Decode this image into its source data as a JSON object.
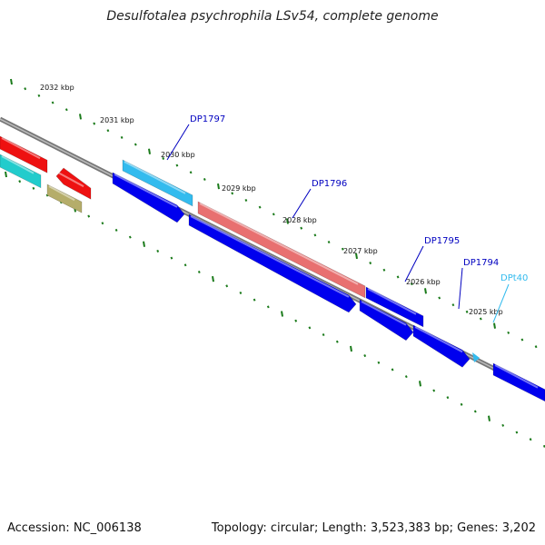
{
  "title": "Desulfotalea psychrophila LSv54, complete genome",
  "footer": {
    "accession": "Accession: NC_006138",
    "summary": "Topology: circular; Length: 3,523,383 bp; Genes: 3,202"
  },
  "ticks": [
    {
      "label": "2032 kbp"
    },
    {
      "label": "2031 kbp"
    },
    {
      "label": "2030 kbp"
    },
    {
      "label": "2029 kbp"
    },
    {
      "label": "2028 kbp"
    },
    {
      "label": "2027 kbp"
    },
    {
      "label": "2026 kbp"
    },
    {
      "label": "2025 kbp"
    }
  ],
  "gene_labels": [
    {
      "name": "DP1797",
      "color": "#0000c0"
    },
    {
      "name": "DP1796",
      "color": "#0000c0"
    },
    {
      "name": "DP1795",
      "color": "#0000c0"
    },
    {
      "name": "DP1794",
      "color": "#0000c0"
    },
    {
      "name": "DPt40",
      "color": "#33bbee"
    }
  ],
  "colors": {
    "backbone": "#888888",
    "tick": "#1a7a1a",
    "cds_blue": "#0000ee",
    "cds_cyan": "#33bbee",
    "cds_red": "#ee1111",
    "cds_pink": "#e87070",
    "cds_olive": "#b5ad6a",
    "cds_teal": "#22cccc"
  }
}
